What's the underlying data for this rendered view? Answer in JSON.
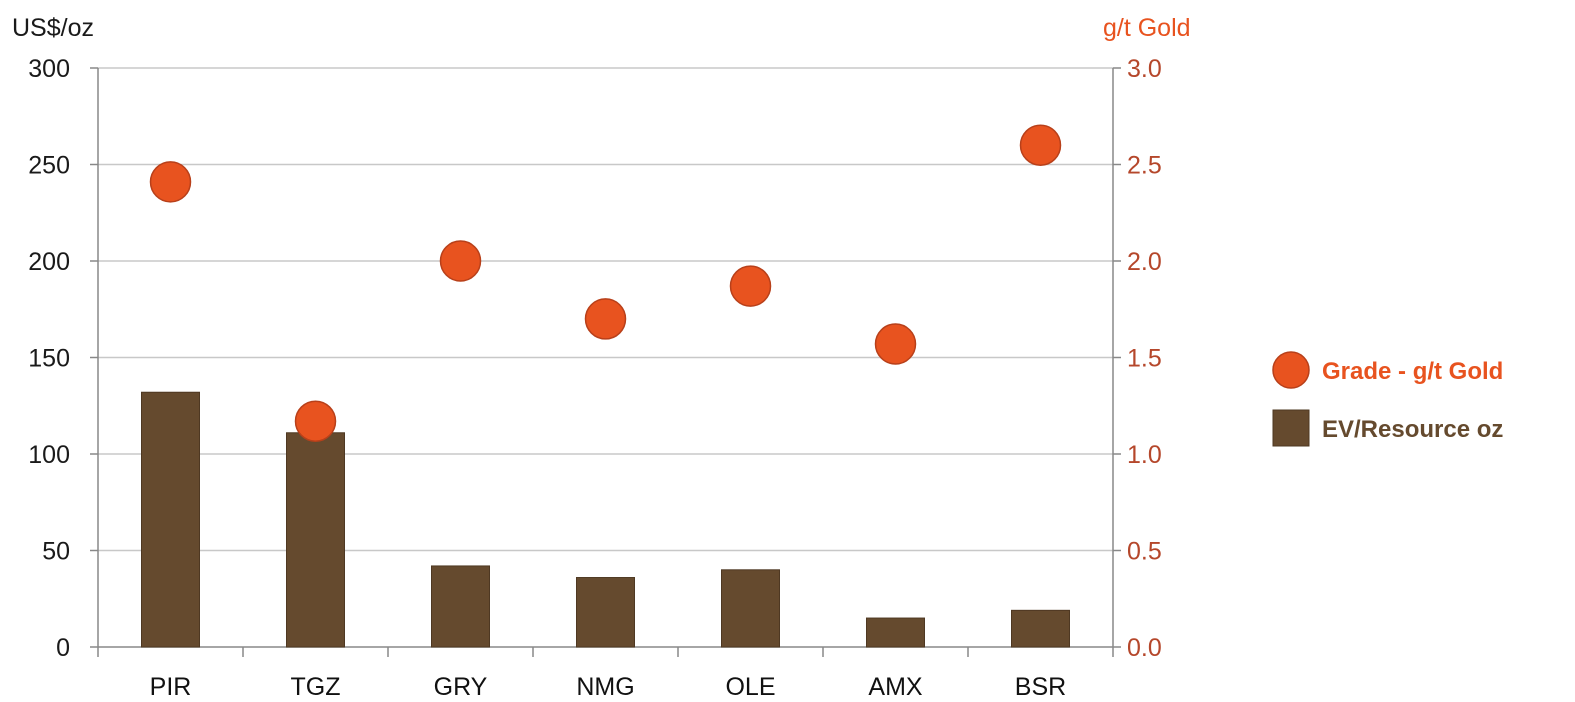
{
  "chart_data": {
    "type": "bar",
    "categories": [
      "PIR",
      "TGZ",
      "GRY",
      "NMG",
      "OLE",
      "AMX",
      "BSR"
    ],
    "series": [
      {
        "name": "EV/Resource oz",
        "type": "bar",
        "axis": "left",
        "values": [
          132,
          111,
          42,
          36,
          40,
          15,
          19
        ]
      },
      {
        "name": "Grade - g/t Gold",
        "type": "scatter",
        "axis": "right",
        "values": [
          2.41,
          1.17,
          2.0,
          1.7,
          1.87,
          1.57,
          2.6
        ]
      }
    ],
    "ylabel": "US$/oz",
    "y2label": "g/t Gold",
    "ylim": [
      0,
      300
    ],
    "y2lim": [
      0,
      3.0
    ],
    "yticks": [
      "0",
      "50",
      "100",
      "150",
      "200",
      "250",
      "300"
    ],
    "y2ticks": [
      "0.0",
      "0.5",
      "1.0",
      "1.5",
      "2.0",
      "2.5",
      "3.0"
    ],
    "grid": true,
    "legend_position": "right"
  },
  "colors": {
    "bar": "#654a2e",
    "marker": "#e8531f",
    "marker_stroke": "#b8401a",
    "grid": "#c8c8c8",
    "axis": "#888888",
    "left_tick_text": "#1a1a1a",
    "right_tick_text": "#b5472b",
    "right_axis_title": "#e8531f",
    "legend_grade_text": "#e8531f",
    "legend_ev_text": "#654a2e"
  }
}
